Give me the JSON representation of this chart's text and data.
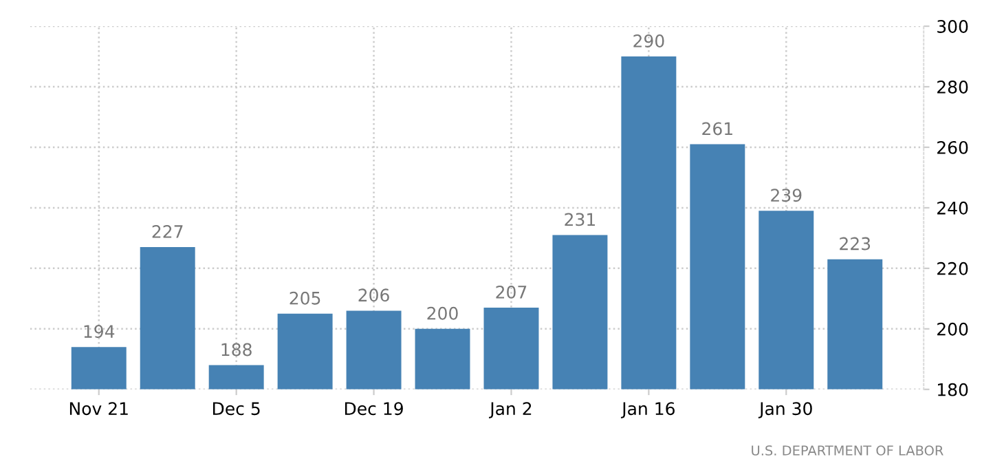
{
  "chart_data": {
    "type": "bar",
    "categories": [
      "Nov 21",
      null,
      "Dec 5",
      null,
      "Dec 19",
      null,
      "Jan 2",
      null,
      "Jan 16",
      null,
      "Jan 30",
      null
    ],
    "values": [
      194,
      227,
      188,
      205,
      206,
      200,
      207,
      231,
      290,
      261,
      239,
      223
    ],
    "color": "#4682b4",
    "ylim": [
      180,
      300
    ],
    "yticks": [
      180,
      200,
      220,
      240,
      260,
      280,
      300
    ],
    "grid": true,
    "data_labels": true,
    "annotations": [
      "U.S. DEPARTMENT OF LABOR"
    ]
  }
}
